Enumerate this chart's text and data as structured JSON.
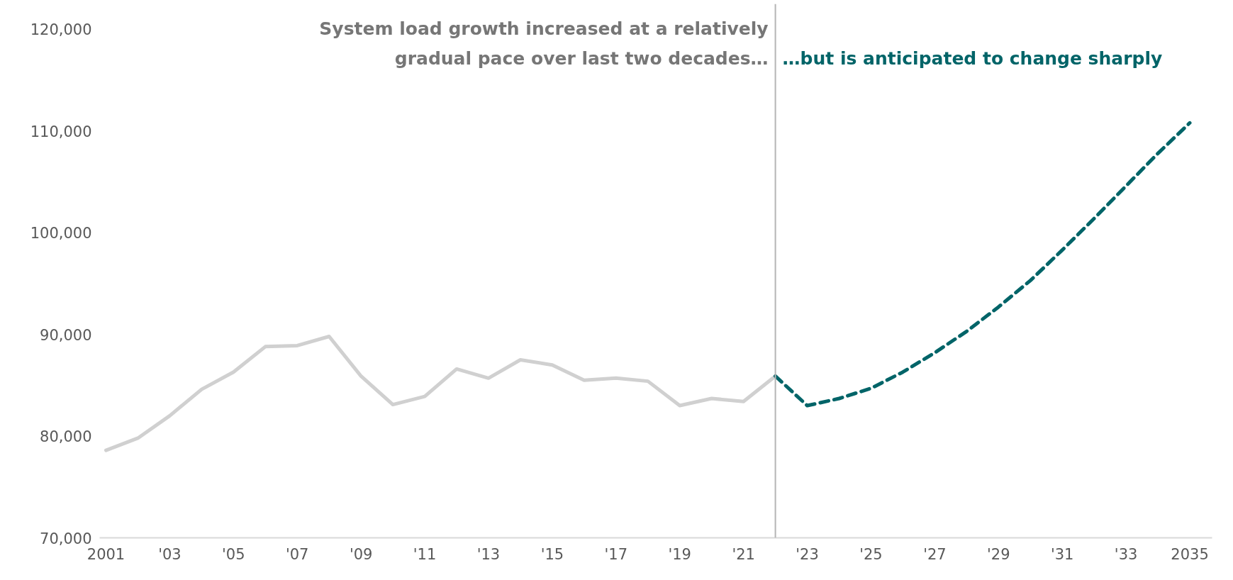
{
  "chart_data": {
    "type": "line",
    "annotations": [
      "System load growth increased at a relatively gradual pace over last two decades…",
      "…but is anticipated to change sharply"
    ],
    "series": [
      {
        "color": "#d0d0d0",
        "line_style": "solid",
        "x": [
          2001,
          2002,
          2003,
          2004,
          2005,
          2006,
          2007,
          2008,
          2009,
          2010,
          2011,
          2012,
          2013,
          2014,
          2015,
          2016,
          2017,
          2018,
          2019,
          2020,
          2021,
          2022
        ],
        "values": [
          78600,
          79800,
          82000,
          84600,
          86300,
          88800,
          88900,
          89800,
          85900,
          83100,
          83900,
          86600,
          85700,
          87500,
          87000,
          85500,
          85700,
          85400,
          83000,
          83700,
          83400,
          85900
        ]
      },
      {
        "color": "#006468",
        "line_style": "dashed",
        "x": [
          2022,
          2023,
          2024,
          2025,
          2026,
          2027,
          2028,
          2029,
          2030,
          2031,
          2032,
          2033,
          2034,
          2035
        ],
        "values": [
          85900,
          83000,
          83700,
          84700,
          86300,
          88200,
          90300,
          92700,
          95300,
          98300,
          101400,
          104600,
          107800,
          110800
        ]
      }
    ],
    "ref_lines": [
      {
        "axis": "x",
        "value": 2022,
        "color": "#b4b4b4"
      }
    ],
    "xlim": [
      2000.8,
      2035.7
    ],
    "xticks": [
      2001,
      {
        "value": 2003,
        "label": "'03"
      },
      {
        "value": 2005,
        "label": "'05"
      },
      {
        "value": 2007,
        "label": "'07"
      },
      {
        "value": 2009,
        "label": "'09"
      },
      {
        "value": 2011,
        "label": "'11"
      },
      {
        "value": 2013,
        "label": "'13"
      },
      {
        "value": 2015,
        "label": "'15"
      },
      {
        "value": 2017,
        "label": "'17"
      },
      {
        "value": 2019,
        "label": "'19"
      },
      {
        "value": 2021,
        "label": "'21"
      },
      {
        "value": 2023,
        "label": "'23"
      },
      {
        "value": 2025,
        "label": "'25"
      },
      {
        "value": 2027,
        "label": "'27"
      },
      {
        "value": 2029,
        "label": "'29"
      },
      {
        "value": 2031,
        "label": "'31"
      },
      {
        "value": 2033,
        "label": "'33"
      },
      2035
    ],
    "ylim": [
      70000,
      122500
    ],
    "yticks": [
      {
        "value": 70000,
        "label": "70,000"
      },
      {
        "value": 80000,
        "label": "80,000"
      },
      {
        "value": 90000,
        "label": "90,000"
      },
      {
        "value": 100000,
        "label": "100,000"
      },
      {
        "value": 110000,
        "label": "110,000"
      },
      {
        "value": 120000,
        "label": "120,000"
      }
    ],
    "grid": false,
    "marker": "none"
  }
}
